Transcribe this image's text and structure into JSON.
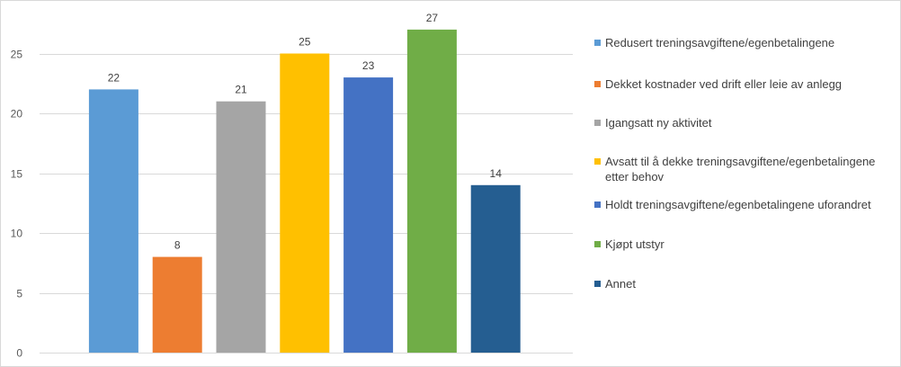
{
  "chart_data": {
    "type": "bar",
    "title": "",
    "xlabel": "",
    "ylabel": "",
    "ylim": [
      0,
      30
    ],
    "yticks": [
      0,
      5,
      10,
      15,
      20,
      25
    ],
    "grid": true,
    "legend_position": "right",
    "show_data_labels": true,
    "categories": [
      "Redusert treningsavgiftene/egenbetalingene",
      "Dekket kostnader ved drift eller leie av anlegg",
      "Igangsatt ny aktivitet",
      "Avsatt til å dekke treningsavgiftene/egenbetalingene etter behov",
      "Holdt treningsavgiftene/egenbetalingene uforandret",
      "Kjøpt utstyr",
      "Annet"
    ],
    "values": [
      22,
      8,
      21,
      25,
      23,
      27,
      14
    ],
    "colors": [
      "#5b9bd5",
      "#ed7d31",
      "#a5a5a5",
      "#ffc000",
      "#4472c4",
      "#70ad47",
      "#255e91"
    ]
  },
  "legend": {
    "items": [
      {
        "label": "Redusert treningsavgiftene/egenbetalingene",
        "color": "#5b9bd5"
      },
      {
        "label": "Dekket kostnader ved drift eller leie av anlegg",
        "color": "#ed7d31"
      },
      {
        "label": "Igangsatt ny aktivitet",
        "color": "#a5a5a5"
      },
      {
        "label": "Avsatt til å dekke treningsavgiftene/egenbetalingene etter behov",
        "color": "#ffc000"
      },
      {
        "label": "Holdt treningsavgiftene/egenbetalingene uforandret",
        "color": "#4472c4"
      },
      {
        "label": "Kjøpt utstyr",
        "color": "#70ad47"
      },
      {
        "label": "Annet",
        "color": "#255e91"
      }
    ]
  }
}
